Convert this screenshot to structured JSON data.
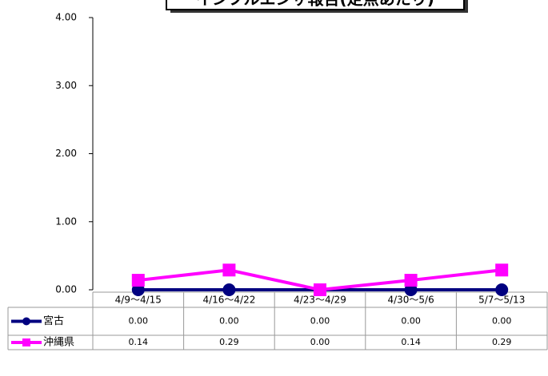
{
  "chart_data": {
    "type": "line",
    "title": "インフルエンザ報告(定点あたり)",
    "categories": [
      "4/9〜4/15",
      "4/16〜4/22",
      "4/23〜4/29",
      "4/30〜5/6",
      "5/7〜5/13"
    ],
    "series": [
      {
        "name": "宮古",
        "color": "#000080",
        "marker": "circle",
        "values": [
          0,
          0,
          0,
          0,
          0
        ],
        "value_labels": [
          "0.00",
          "0.00",
          "0.00",
          "0.00",
          "0.00"
        ]
      },
      {
        "name": "沖縄県",
        "color": "#ff00ff",
        "marker": "square",
        "values": [
          0.14,
          0.29,
          0,
          0.14,
          0.29
        ],
        "value_labels": [
          "0.14",
          "0.29",
          "0.00",
          "0.14",
          "0.29"
        ]
      }
    ],
    "ylim": [
      0,
      4
    ],
    "yticks": [
      {
        "value": 0,
        "label": "0.00"
      },
      {
        "value": 1,
        "label": "1.00"
      },
      {
        "value": 2,
        "label": "2.00"
      },
      {
        "value": 3,
        "label": "3.00"
      },
      {
        "value": 4,
        "label": "4.00"
      }
    ],
    "grid": false
  }
}
